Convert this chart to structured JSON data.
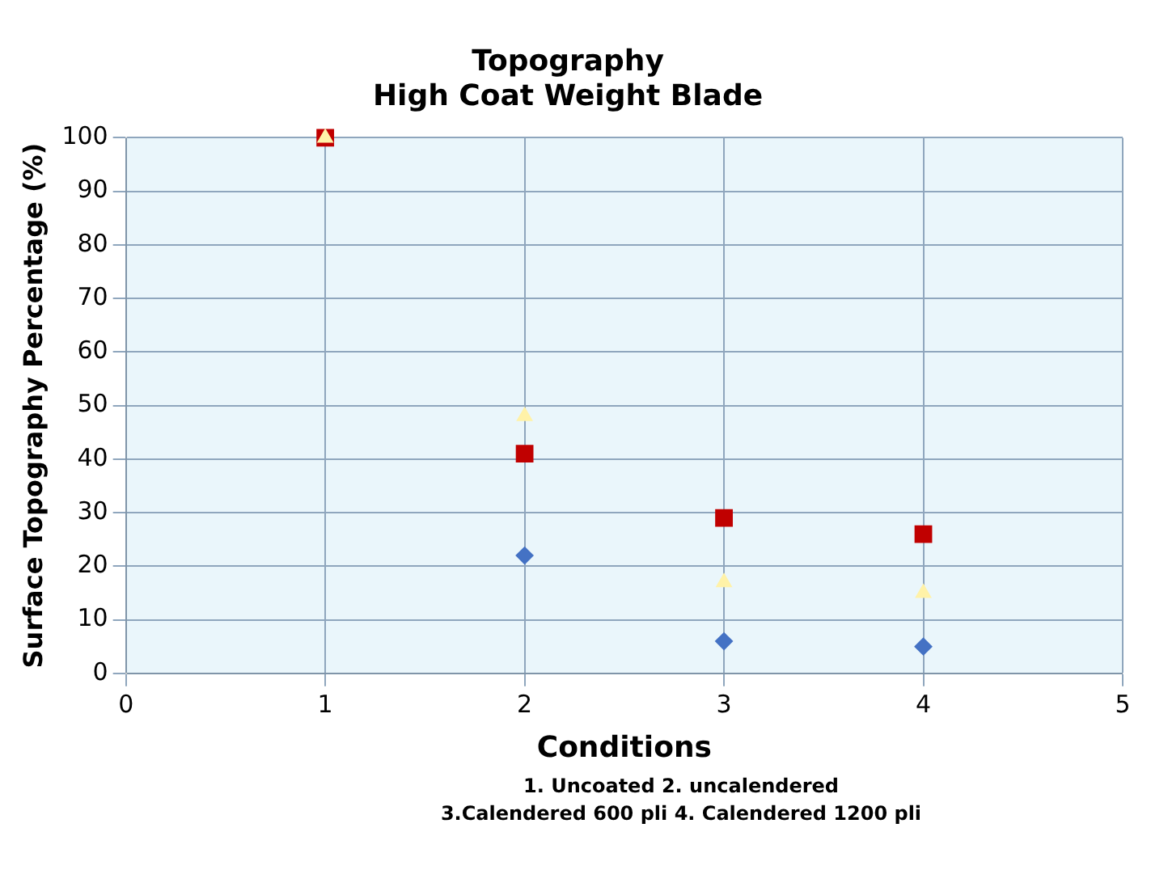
{
  "chart_data": {
    "type": "scatter",
    "title": "Topography",
    "subtitle": "High Coat Weight Blade",
    "xlabel": "Conditions",
    "ylabel": "Surface Topography Percentage (%)",
    "annotations": [
      "1. Uncoated   2. uncalendered",
      "3.Calendered 600 pli   4. Calendered 1200 pli"
    ],
    "x": [
      1,
      2,
      3,
      4
    ],
    "series": [
      {
        "color": "#4472c4",
        "marker": "diamond",
        "values": [
          null,
          22,
          6,
          5
        ]
      },
      {
        "color": "#c00000",
        "marker": "square",
        "values": [
          100,
          41,
          29,
          26
        ]
      },
      {
        "color": "#fff2a8",
        "marker": "triangle",
        "values": [
          100,
          48,
          17,
          15
        ]
      }
    ],
    "xlim": [
      0,
      5
    ],
    "xticks": [
      0,
      1,
      2,
      3,
      4,
      5
    ],
    "ylim": [
      0,
      100
    ],
    "yticks": [
      0,
      10,
      20,
      30,
      40,
      50,
      60,
      70,
      80,
      90,
      100
    ],
    "grid": true,
    "legend": false
  }
}
